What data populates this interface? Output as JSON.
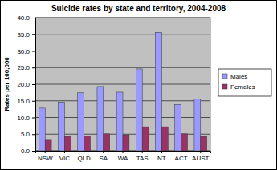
{
  "chart_data": {
    "type": "bar",
    "title": "Suicide rates by state and territory, 2004-2008",
    "y_label": "Rates per 100,000",
    "categories": [
      "NSW",
      "VIC",
      "QLD",
      "SA",
      "WA",
      "TAS",
      "NT",
      "ACT",
      "AUST"
    ],
    "series": [
      {
        "name": "Males",
        "color": "#9999ff",
        "values": [
          12.8,
          14.6,
          17.4,
          19.3,
          17.6,
          24.6,
          35.6,
          13.9,
          15.6
        ]
      },
      {
        "name": "Females",
        "color": "#993366",
        "values": [
          3.4,
          4.3,
          4.4,
          5.1,
          4.8,
          7.2,
          7.2,
          5.1,
          4.3
        ]
      }
    ],
    "ylim": [
      0,
      40
    ],
    "yticks": [
      {
        "value": 0,
        "label": "0.0"
      },
      {
        "value": 5,
        "label": "5.0"
      },
      {
        "value": 10,
        "label": "10.0"
      },
      {
        "value": 15,
        "label": "15.0"
      },
      {
        "value": 20,
        "label": "20.0"
      },
      {
        "value": 25,
        "label": "25.0"
      },
      {
        "value": 30,
        "label": "30.0"
      },
      {
        "value": 35,
        "label": "35.0"
      },
      {
        "value": 40,
        "label": "40.0"
      }
    ],
    "grid": true,
    "legend": "right"
  }
}
